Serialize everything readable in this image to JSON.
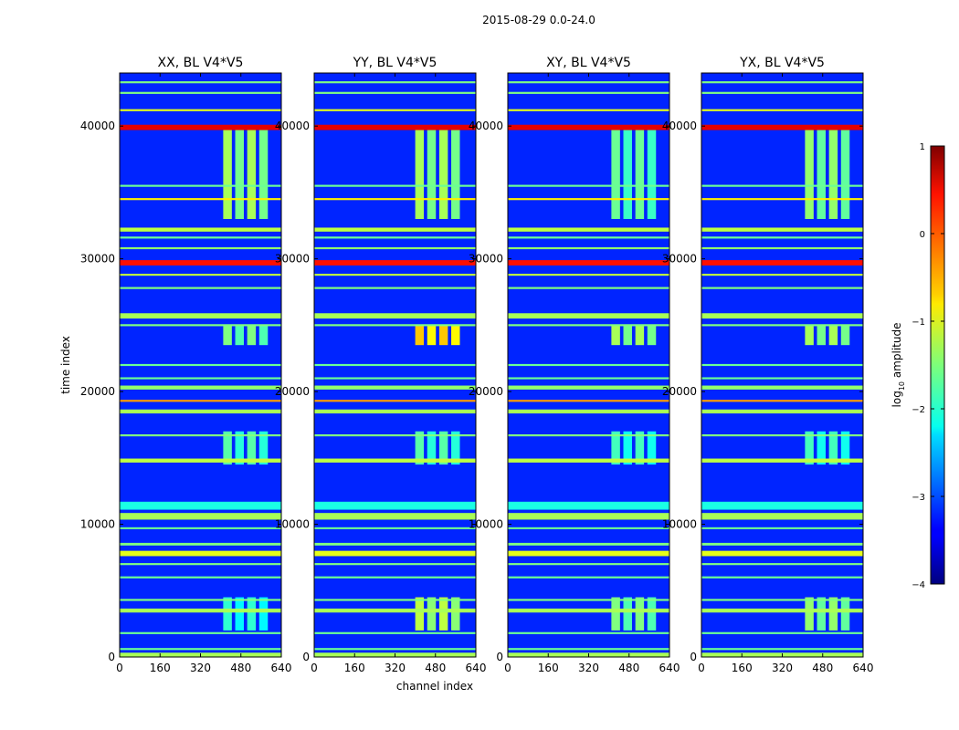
{
  "chart_data": {
    "type": "heatmap",
    "suptitle": "2015-08-29 0.0-24.0",
    "xlabel": "channel index",
    "ylabel": "time index",
    "xlim": [
      0,
      640
    ],
    "ylim": [
      0,
      44000
    ],
    "xticks": [
      0,
      160,
      320,
      480,
      640
    ],
    "yticks": [
      0,
      10000,
      20000,
      30000,
      40000
    ],
    "colorscale": "jet",
    "colorbar": {
      "label": "log10 amplitude",
      "label_main": "log",
      "label_sub": "10",
      "label_tail": " amplitude",
      "range": [
        -4,
        1
      ],
      "ticks": [
        -4,
        -3,
        -2,
        -1,
        0,
        1
      ],
      "tick_labels": [
        "−4",
        "−3",
        "−2",
        "−1",
        "0",
        "1"
      ]
    },
    "panels": [
      {
        "title": "XX, BL V4*V5",
        "bright_segments": [
          {
            "t0": 33000,
            "t1": 40000,
            "c0": 410,
            "c1": 600,
            "level": -1.3
          },
          {
            "t0": 23500,
            "t1": 25000,
            "c0": 410,
            "c1": 600,
            "level": -1.5
          },
          {
            "t0": 14500,
            "t1": 17000,
            "c0": 410,
            "c1": 600,
            "level": -1.7
          },
          {
            "t0": 2000,
            "t1": 4500,
            "c0": 410,
            "c1": 600,
            "level": -1.9
          }
        ]
      },
      {
        "title": "YY, BL V4*V5",
        "bright_segments": [
          {
            "t0": 33000,
            "t1": 40000,
            "c0": 400,
            "c1": 590,
            "level": -1.3
          },
          {
            "t0": 23500,
            "t1": 25000,
            "c0": 400,
            "c1": 590,
            "level": -0.6
          },
          {
            "t0": 14500,
            "t1": 17000,
            "c0": 400,
            "c1": 590,
            "level": -1.7
          },
          {
            "t0": 2000,
            "t1": 4500,
            "c0": 400,
            "c1": 590,
            "level": -1.2
          }
        ]
      },
      {
        "title": "XY, BL V4*V5",
        "bright_segments": [
          {
            "t0": 33000,
            "t1": 40000,
            "c0": 410,
            "c1": 600,
            "level": -1.6
          },
          {
            "t0": 23500,
            "t1": 25000,
            "c0": 410,
            "c1": 600,
            "level": -1.3
          },
          {
            "t0": 14500,
            "t1": 17000,
            "c0": 410,
            "c1": 600,
            "level": -1.8
          },
          {
            "t0": 2000,
            "t1": 4500,
            "c0": 410,
            "c1": 600,
            "level": -1.5
          }
        ]
      },
      {
        "title": "YX, BL V4*V5",
        "bright_segments": [
          {
            "t0": 33000,
            "t1": 40000,
            "c0": 410,
            "c1": 600,
            "level": -1.4
          },
          {
            "t0": 23500,
            "t1": 25000,
            "c0": 410,
            "c1": 600,
            "level": -1.3
          },
          {
            "t0": 14500,
            "t1": 17000,
            "c0": 410,
            "c1": 600,
            "level": -1.8
          },
          {
            "t0": 2000,
            "t1": 4500,
            "c0": 410,
            "c1": 600,
            "level": -1.4
          }
        ]
      }
    ],
    "background_level": -3.2,
    "rfi_stripes": [
      {
        "t": 43300,
        "w": 150,
        "level": -1.5
      },
      {
        "t": 42500,
        "w": 150,
        "level": -1.5
      },
      {
        "t": 41200,
        "w": 150,
        "level": -1.0
      },
      {
        "t": 39900,
        "w": 400,
        "level": 0.5
      },
      {
        "t": 35500,
        "w": 150,
        "level": -1.6
      },
      {
        "t": 34500,
        "w": 150,
        "level": -0.8
      },
      {
        "t": 32200,
        "w": 300,
        "level": -1.2
      },
      {
        "t": 31600,
        "w": 150,
        "level": -1.6
      },
      {
        "t": 30800,
        "w": 150,
        "level": -1.4
      },
      {
        "t": 29700,
        "w": 400,
        "level": 0.3
      },
      {
        "t": 28800,
        "w": 150,
        "level": -1.2
      },
      {
        "t": 27800,
        "w": 150,
        "level": -1.5
      },
      {
        "t": 25700,
        "w": 400,
        "level": -1.3
      },
      {
        "t": 25000,
        "w": 150,
        "level": -1.5
      },
      {
        "t": 22000,
        "w": 150,
        "level": -1.6
      },
      {
        "t": 21000,
        "w": 150,
        "level": -1.6
      },
      {
        "t": 20300,
        "w": 300,
        "level": -1.4
      },
      {
        "t": 19300,
        "w": 150,
        "level": -0.4
      },
      {
        "t": 18500,
        "w": 300,
        "level": -1.3
      },
      {
        "t": 16700,
        "w": 150,
        "level": -1.5
      },
      {
        "t": 14800,
        "w": 300,
        "level": -1.2
      },
      {
        "t": 11400,
        "w": 600,
        "level": -2.0
      },
      {
        "t": 10600,
        "w": 500,
        "level": -1.3
      },
      {
        "t": 9700,
        "w": 150,
        "level": -1.6
      },
      {
        "t": 8500,
        "w": 200,
        "level": -1.5
      },
      {
        "t": 7800,
        "w": 400,
        "level": -1.0
      },
      {
        "t": 7000,
        "w": 150,
        "level": -1.5
      },
      {
        "t": 6000,
        "w": 150,
        "level": -1.6
      },
      {
        "t": 4300,
        "w": 150,
        "level": -1.5
      },
      {
        "t": 3500,
        "w": 300,
        "level": -1.3
      },
      {
        "t": 1800,
        "w": 150,
        "level": -1.6
      },
      {
        "t": 600,
        "w": 150,
        "level": -1.6
      },
      {
        "t": 150,
        "w": 350,
        "level": -1.3
      }
    ]
  }
}
